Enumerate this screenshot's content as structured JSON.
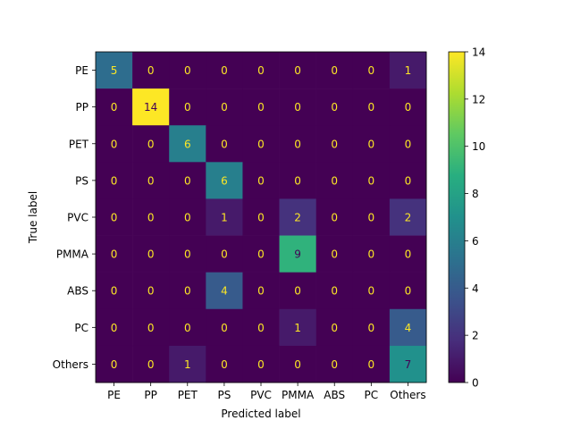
{
  "chart_data": {
    "type": "heatmap",
    "title": "",
    "xlabel": "Predicted label",
    "ylabel": "True label",
    "x_categories": [
      "PE",
      "PP",
      "PET",
      "PS",
      "PVC",
      "PMMA",
      "ABS",
      "PC",
      "Others"
    ],
    "y_categories": [
      "PE",
      "PP",
      "PET",
      "PS",
      "PVC",
      "PMMA",
      "ABS",
      "PC",
      "Others"
    ],
    "values": [
      [
        5,
        0,
        0,
        0,
        0,
        0,
        0,
        0,
        1
      ],
      [
        0,
        14,
        0,
        0,
        0,
        0,
        0,
        0,
        0
      ],
      [
        0,
        0,
        6,
        0,
        0,
        0,
        0,
        0,
        0
      ],
      [
        0,
        0,
        0,
        6,
        0,
        0,
        0,
        0,
        0
      ],
      [
        0,
        0,
        0,
        1,
        0,
        2,
        0,
        0,
        2
      ],
      [
        0,
        0,
        0,
        0,
        0,
        9,
        0,
        0,
        0
      ],
      [
        0,
        0,
        0,
        4,
        0,
        0,
        0,
        0,
        0
      ],
      [
        0,
        0,
        0,
        0,
        0,
        1,
        0,
        0,
        4
      ],
      [
        0,
        0,
        1,
        0,
        0,
        0,
        0,
        0,
        7
      ]
    ],
    "colorbar": {
      "colormap": "viridis",
      "range": [
        0,
        14
      ],
      "ticks": [
        0,
        2,
        4,
        6,
        8,
        10,
        12,
        14
      ]
    },
    "cell_text_colors": {
      "dark_cell": "#fde725",
      "light_cell": "#440154"
    }
  }
}
